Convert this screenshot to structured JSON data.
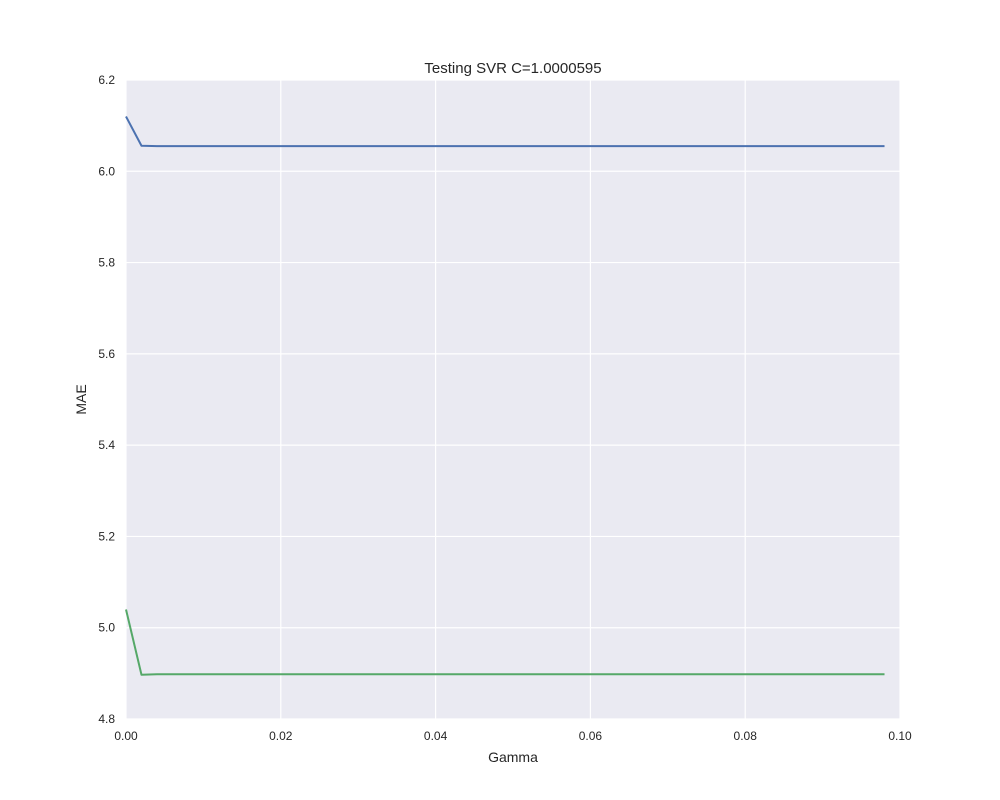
{
  "chart_data": {
    "type": "line",
    "title": "Testing SVR C=1.0000595",
    "xlabel": "Gamma",
    "ylabel": "MAE",
    "xlim": [
      0.0,
      0.1
    ],
    "ylim": [
      4.8,
      6.2
    ],
    "xticks": [
      "0.00",
      "0.02",
      "0.04",
      "0.06",
      "0.08",
      "0.10"
    ],
    "yticks": [
      "4.8",
      "5.0",
      "5.2",
      "5.4",
      "5.6",
      "5.8",
      "6.0",
      "6.2"
    ],
    "grid": true,
    "series": [
      {
        "color": "#4c72b0",
        "x": [
          0.0,
          0.002,
          0.004,
          0.098
        ],
        "values": [
          6.12,
          6.056,
          6.055,
          6.055
        ]
      },
      {
        "color": "#55a868",
        "x": [
          0.0,
          0.002,
          0.004,
          0.098
        ],
        "values": [
          5.04,
          4.897,
          4.898,
          4.898
        ]
      }
    ],
    "background": "#eaeaf2",
    "grid_color": "#ffffff"
  }
}
